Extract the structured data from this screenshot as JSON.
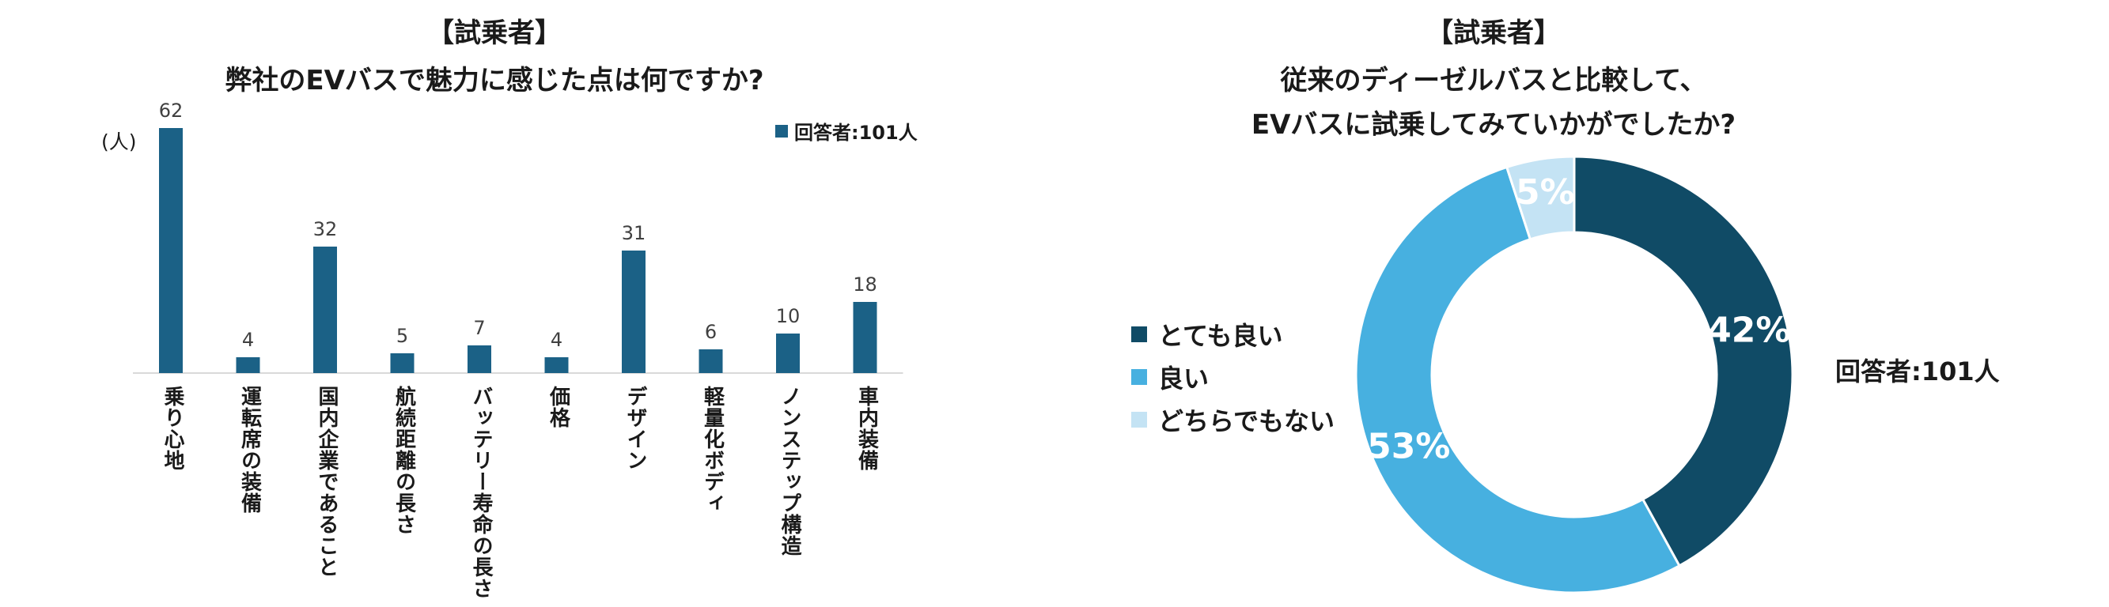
{
  "chart_data": [
    {
      "type": "bar",
      "title": "【試乗者】",
      "subtitle": "弊社のEVバスで魅力に感じた点は何ですか?",
      "ylabel": "(人)",
      "legend": "回答者:101人",
      "legend_placement": "top-right",
      "color": "#1b6186",
      "ylim": [
        0,
        62
      ],
      "grid": false,
      "categories": [
        "乗り心地",
        "運転席の装備",
        "国内企業であること",
        "航続距離の長さ",
        "バッテリー寿命の長さ",
        "価格",
        "デザイン",
        "軽量化ボディ",
        "ノンステップ構造",
        "車内装備"
      ],
      "values": [
        62,
        4,
        32,
        5,
        7,
        4,
        31,
        6,
        10,
        18
      ]
    },
    {
      "type": "pie",
      "title": "【試乗者】",
      "subtitle_lines": [
        "従来のディーゼルバスと比較して、",
        "EVバスに試乗してみていかがでしたか?"
      ],
      "note": "回答者:101人",
      "legend_placement": "left",
      "slices": [
        {
          "label": "とても良い",
          "value": 42,
          "display": "42%",
          "color": "#104b66"
        },
        {
          "label": "良い",
          "value": 53,
          "display": "53%",
          "color": "#47b0e0"
        },
        {
          "label": "どちらでもない",
          "value": 5,
          "display": "5%",
          "color": "#c4e3f4"
        }
      ]
    }
  ]
}
